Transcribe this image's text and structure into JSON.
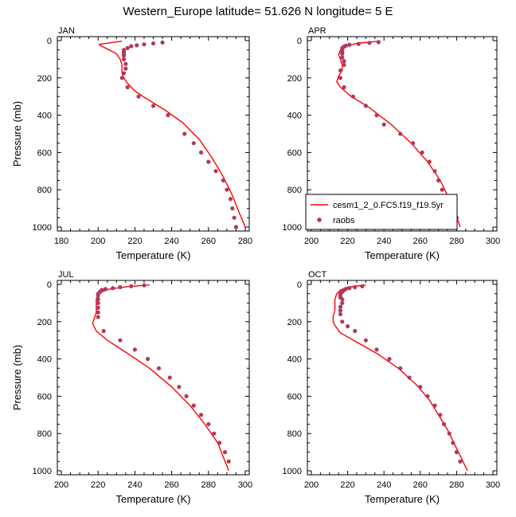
{
  "figure": {
    "title": "Western_Europe  latitude= 51.626 N longitude= 5 E",
    "colors": {
      "model": "#ff0000",
      "obs": "#b03a5b",
      "axis": "#000000"
    }
  },
  "chart_data": [
    {
      "type": "line+scatter",
      "panel": "JAN",
      "xlabel": "Temperature (K)",
      "ylabel": "Pressure (mb)",
      "xlim": [
        180,
        280
      ],
      "ylim": [
        1000,
        0
      ],
      "xticks": [
        180,
        200,
        220,
        240,
        260,
        280
      ],
      "yticks": [
        0,
        200,
        400,
        600,
        800,
        1000
      ],
      "series": [
        {
          "name": "cesm1_2_0.FC5.f19_f19.5yr",
          "kind": "line",
          "x": [
            213,
            200.5,
            202,
            206,
            210,
            212,
            213,
            213,
            213,
            214,
            216,
            220,
            226,
            236,
            246,
            255,
            262,
            268,
            273,
            277,
            280
          ],
          "y": [
            3,
            20,
            30,
            50,
            70,
            100,
            130,
            150,
            175,
            200,
            230,
            270,
            310,
            370,
            440,
            530,
            630,
            730,
            830,
            930,
            1000
          ]
        },
        {
          "name": "raobs",
          "kind": "scatter",
          "x": [
            235,
            230,
            225,
            221,
            218,
            216,
            214,
            214,
            214,
            214,
            214,
            215,
            215,
            214,
            213,
            216,
            222,
            230,
            238,
            247,
            252,
            256,
            260,
            264,
            268,
            270,
            272,
            273,
            274,
            275
          ],
          "y": [
            10,
            15,
            20,
            25,
            30,
            40,
            50,
            60,
            70,
            80,
            100,
            125,
            150,
            175,
            200,
            250,
            300,
            350,
            400,
            500,
            550,
            600,
            650,
            700,
            750,
            800,
            850,
            900,
            950,
            1000
          ]
        }
      ]
    },
    {
      "type": "line+scatter",
      "panel": "APR",
      "xlabel": "Temperature (K)",
      "ylabel": "",
      "xlim": [
        200,
        300
      ],
      "ylim": [
        1000,
        0
      ],
      "xticks": [
        200,
        220,
        240,
        260,
        280,
        300
      ],
      "yticks": [
        0,
        200,
        400,
        600,
        800,
        1000
      ],
      "legend": {
        "placement": "lower-right",
        "entries": [
          "cesm1_2_0.FC5.f19_f19.5yr",
          "raobs"
        ]
      },
      "series": [
        {
          "name": "cesm1_2_0.FC5.f19_f19.5yr",
          "kind": "line",
          "x": [
            237,
            225,
            219,
            216,
            215,
            216,
            217,
            217,
            215,
            214,
            216,
            222,
            232,
            244,
            255,
            264,
            271,
            277,
            282
          ],
          "y": [
            3,
            15,
            30,
            50,
            75,
            100,
            130,
            160,
            190,
            220,
            250,
            300,
            360,
            450,
            550,
            650,
            750,
            870,
            1000
          ]
        },
        {
          "name": "raobs",
          "kind": "scatter",
          "x": [
            237,
            232,
            226,
            221,
            219,
            218,
            217,
            217,
            217,
            217,
            217,
            218,
            218,
            216,
            216,
            218,
            223,
            230,
            236,
            240,
            249,
            256,
            261,
            265,
            268,
            270,
            272,
            274,
            277,
            280
          ],
          "y": [
            8,
            12,
            18,
            22,
            27,
            32,
            40,
            50,
            60,
            70,
            90,
            110,
            130,
            160,
            200,
            250,
            300,
            350,
            400,
            450,
            500,
            550,
            600,
            650,
            700,
            750,
            800,
            850,
            900,
            950
          ]
        }
      ]
    },
    {
      "type": "line+scatter",
      "panel": "JUL",
      "xlabel": "Temperature (K)",
      "ylabel": "Pressure (mb)",
      "xlim": [
        200,
        300
      ],
      "ylim": [
        1000,
        0
      ],
      "xticks": [
        200,
        220,
        240,
        260,
        280,
        300
      ],
      "yticks": [
        0,
        200,
        400,
        600,
        800,
        1000
      ],
      "series": [
        {
          "name": "cesm1_2_0.FC5.f19_f19.5yr",
          "kind": "line",
          "x": [
            248,
            236,
            226,
            221,
            219,
            219,
            219,
            218,
            217,
            219,
            225,
            236,
            248,
            260,
            270,
            278,
            285,
            291
          ],
          "y": [
            3,
            12,
            25,
            45,
            75,
            110,
            150,
            180,
            210,
            250,
            300,
            370,
            450,
            550,
            650,
            750,
            850,
            1000
          ]
        },
        {
          "name": "raobs",
          "kind": "scatter",
          "x": [
            245,
            238,
            232,
            228,
            224,
            222,
            221,
            220,
            220,
            220,
            220,
            220,
            220,
            220,
            223,
            232,
            240,
            247,
            253,
            259,
            264,
            268,
            272,
            276,
            280,
            283,
            286,
            289,
            291
          ],
          "y": [
            5,
            10,
            15,
            20,
            25,
            30,
            40,
            50,
            60,
            80,
            100,
            125,
            150,
            175,
            250,
            300,
            350,
            400,
            450,
            500,
            550,
            600,
            650,
            700,
            750,
            800,
            850,
            900,
            950
          ]
        }
      ]
    },
    {
      "type": "line+scatter",
      "panel": "OCT",
      "xlabel": "Temperature (K)",
      "ylabel": "",
      "xlim": [
        200,
        300
      ],
      "ylim": [
        1000,
        0
      ],
      "xticks": [
        200,
        220,
        240,
        260,
        280,
        300
      ],
      "yticks": [
        0,
        200,
        400,
        600,
        800,
        1000
      ],
      "series": [
        {
          "name": "cesm1_2_0.FC5.f19_f19.5yr",
          "kind": "line",
          "x": [
            230,
            220,
            216,
            214,
            213,
            213,
            213,
            212,
            212,
            213,
            216,
            225,
            236,
            248,
            258,
            265,
            270,
            275,
            280,
            286
          ],
          "y": [
            3,
            15,
            30,
            50,
            80,
            110,
            140,
            170,
            200,
            220,
            260,
            310,
            370,
            450,
            540,
            620,
            700,
            780,
            880,
            1000
          ]
        },
        {
          "name": "raobs",
          "kind": "scatter",
          "x": [
            228,
            224,
            221,
            219,
            218,
            217,
            216,
            216,
            216,
            217,
            217,
            216,
            216,
            216,
            217,
            220,
            224,
            230,
            236,
            243,
            249,
            254,
            260,
            264,
            268,
            271,
            273,
            276,
            278,
            280,
            282
          ],
          "y": [
            10,
            15,
            20,
            25,
            30,
            40,
            50,
            60,
            70,
            80,
            100,
            120,
            140,
            160,
            200,
            225,
            250,
            300,
            350,
            400,
            450,
            500,
            550,
            600,
            650,
            700,
            750,
            800,
            850,
            900,
            950
          ]
        }
      ]
    }
  ]
}
